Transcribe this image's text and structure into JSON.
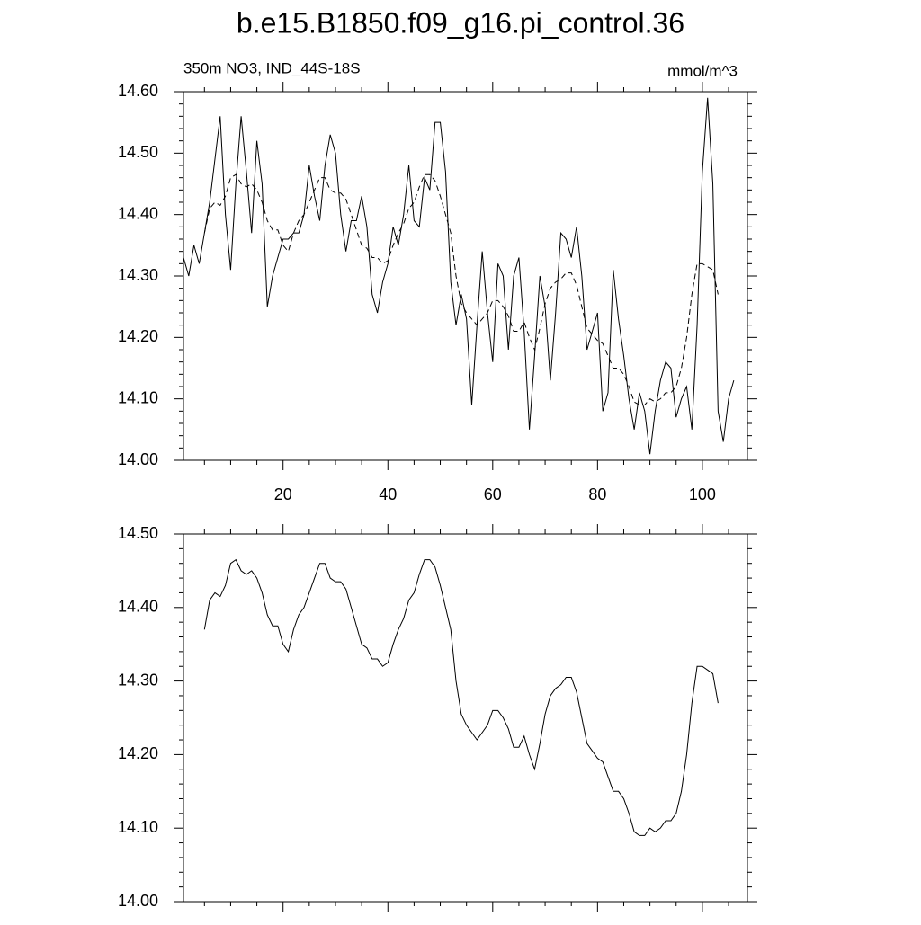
{
  "title": "b.e15.B1850.f09_g16.pi_control.36",
  "chart_data": [
    {
      "type": "line",
      "subtitle": "350m NO3, IND_44S-18S",
      "units": "mmol/m^3",
      "x": [
        1,
        2,
        3,
        4,
        5,
        6,
        7,
        8,
        9,
        10,
        11,
        12,
        13,
        14,
        15,
        16,
        17,
        18,
        19,
        20,
        21,
        22,
        23,
        24,
        25,
        26,
        27,
        28,
        29,
        30,
        31,
        32,
        33,
        34,
        35,
        36,
        37,
        38,
        39,
        40,
        41,
        42,
        43,
        44,
        45,
        46,
        47,
        48,
        49,
        50,
        51,
        52,
        53,
        54,
        55,
        56,
        57,
        58,
        59,
        60,
        61,
        62,
        63,
        64,
        65,
        66,
        67,
        68,
        69,
        70,
        71,
        72,
        73,
        74,
        75,
        76,
        77,
        78,
        79,
        80,
        81,
        82,
        83,
        84,
        85,
        86,
        87,
        88,
        89,
        90,
        91,
        92,
        93,
        94,
        95,
        96,
        97,
        98,
        99,
        100,
        101,
        102,
        103,
        104,
        105,
        106
      ],
      "series": [
        {
          "color": "#000000",
          "dashed": false,
          "values": [
            14.33,
            14.3,
            14.35,
            14.32,
            14.37,
            14.42,
            14.49,
            14.56,
            14.4,
            14.31,
            14.45,
            14.56,
            14.47,
            14.37,
            14.52,
            14.45,
            14.25,
            14.3,
            14.33,
            14.36,
            14.36,
            14.37,
            14.37,
            14.4,
            14.48,
            14.43,
            14.39,
            14.48,
            14.53,
            14.5,
            14.4,
            14.34,
            14.39,
            14.39,
            14.43,
            14.38,
            14.27,
            14.24,
            14.29,
            14.32,
            14.38,
            14.35,
            14.4,
            14.48,
            14.39,
            14.38,
            14.46,
            14.44,
            14.55,
            14.55,
            14.47,
            14.29,
            14.22,
            14.27,
            14.23,
            14.09,
            14.22,
            14.34,
            14.24,
            14.16,
            14.32,
            14.3,
            14.18,
            14.3,
            14.33,
            14.21,
            14.05,
            14.17,
            14.3,
            14.25,
            14.13,
            14.24,
            14.37,
            14.36,
            14.33,
            14.38,
            14.3,
            14.18,
            14.21,
            14.24,
            14.08,
            14.11,
            14.31,
            14.23,
            14.17,
            14.1,
            14.05,
            14.11,
            14.08,
            14.01,
            14.08,
            14.13,
            14.16,
            14.15,
            14.07,
            14.1,
            14.12,
            14.05,
            14.22,
            14.47,
            14.59,
            14.45,
            14.08,
            14.03,
            14.1,
            14.13
          ]
        },
        {
          "color": "#000000",
          "dashed": true,
          "values": [
            null,
            null,
            null,
            null,
            14.37,
            14.41,
            14.42,
            14.415,
            14.43,
            14.46,
            14.465,
            14.45,
            14.445,
            14.45,
            14.44,
            14.42,
            14.39,
            14.375,
            14.375,
            14.35,
            14.34,
            14.37,
            14.39,
            14.4,
            14.42,
            14.44,
            14.46,
            14.46,
            14.44,
            14.435,
            14.435,
            14.425,
            14.4,
            14.375,
            14.35,
            14.345,
            14.33,
            14.33,
            14.32,
            14.325,
            14.35,
            14.37,
            14.385,
            14.41,
            14.42,
            14.445,
            14.465,
            14.465,
            14.455,
            14.43,
            14.4,
            14.37,
            14.3,
            14.255,
            14.24,
            14.23,
            14.22,
            14.23,
            14.24,
            14.26,
            14.26,
            14.25,
            14.235,
            14.21,
            14.21,
            14.225,
            14.2,
            14.18,
            14.215,
            14.255,
            14.28,
            14.29,
            14.295,
            14.305,
            14.305,
            14.285,
            14.25,
            14.215,
            14.205,
            14.195,
            14.19,
            14.17,
            14.15,
            14.15,
            14.14,
            14.12,
            14.095,
            14.09,
            14.09,
            14.1,
            14.095,
            14.1,
            14.11,
            14.11,
            14.12,
            14.15,
            14.2,
            14.27,
            14.32,
            14.32,
            14.315,
            14.31,
            14.27,
            null,
            null,
            null
          ]
        }
      ],
      "xlim": [
        1,
        108.6
      ],
      "xticks": [
        20,
        40,
        60,
        80,
        100
      ],
      "xtick_labels": true,
      "ylim": [
        14.0,
        14.6
      ],
      "yticks": [
        {
          "value": 14.0,
          "label": "14.00"
        },
        {
          "value": 14.1,
          "label": "14.10"
        },
        {
          "value": 14.2,
          "label": "14.20"
        },
        {
          "value": 14.3,
          "label": "14.30"
        },
        {
          "value": 14.4,
          "label": "14.40"
        },
        {
          "value": 14.5,
          "label": "14.50"
        },
        {
          "value": 14.6,
          "label": "14.60"
        }
      ],
      "x_minor_divisions": 4,
      "y_minor_divisions": 5
    },
    {
      "type": "line",
      "x": [
        1,
        2,
        3,
        4,
        5,
        6,
        7,
        8,
        9,
        10,
        11,
        12,
        13,
        14,
        15,
        16,
        17,
        18,
        19,
        20,
        21,
        22,
        23,
        24,
        25,
        26,
        27,
        28,
        29,
        30,
        31,
        32,
        33,
        34,
        35,
        36,
        37,
        38,
        39,
        40,
        41,
        42,
        43,
        44,
        45,
        46,
        47,
        48,
        49,
        50,
        51,
        52,
        53,
        54,
        55,
        56,
        57,
        58,
        59,
        60,
        61,
        62,
        63,
        64,
        65,
        66,
        67,
        68,
        69,
        70,
        71,
        72,
        73,
        74,
        75,
        76,
        77,
        78,
        79,
        80,
        81,
        82,
        83,
        84,
        85,
        86,
        87,
        88,
        89,
        90,
        91,
        92,
        93,
        94,
        95,
        96,
        97,
        98,
        99,
        100,
        101,
        102,
        103,
        104,
        105,
        106
      ],
      "series": [
        {
          "color": "#000000",
          "dashed": false,
          "values": [
            null,
            null,
            null,
            null,
            14.37,
            14.41,
            14.42,
            14.415,
            14.43,
            14.46,
            14.465,
            14.45,
            14.445,
            14.45,
            14.44,
            14.42,
            14.39,
            14.375,
            14.375,
            14.35,
            14.34,
            14.37,
            14.39,
            14.4,
            14.42,
            14.44,
            14.46,
            14.46,
            14.44,
            14.435,
            14.435,
            14.425,
            14.4,
            14.375,
            14.35,
            14.345,
            14.33,
            14.33,
            14.32,
            14.325,
            14.35,
            14.37,
            14.385,
            14.41,
            14.42,
            14.445,
            14.465,
            14.465,
            14.455,
            14.43,
            14.4,
            14.37,
            14.3,
            14.255,
            14.24,
            14.23,
            14.22,
            14.23,
            14.24,
            14.26,
            14.26,
            14.25,
            14.235,
            14.21,
            14.21,
            14.225,
            14.2,
            14.18,
            14.215,
            14.255,
            14.28,
            14.29,
            14.295,
            14.305,
            14.305,
            14.285,
            14.25,
            14.215,
            14.205,
            14.195,
            14.19,
            14.17,
            14.15,
            14.15,
            14.14,
            14.12,
            14.095,
            14.09,
            14.09,
            14.1,
            14.095,
            14.1,
            14.11,
            14.11,
            14.12,
            14.15,
            14.2,
            14.27,
            14.32,
            14.32,
            14.315,
            14.31,
            14.27,
            null,
            null,
            null
          ]
        }
      ],
      "xlim": [
        1,
        108.6
      ],
      "xticks": [
        20,
        40,
        60,
        80,
        100
      ],
      "xtick_labels": false,
      "ylim": [
        14.0,
        14.5
      ],
      "yticks": [
        {
          "value": 14.0,
          "label": "14.00"
        },
        {
          "value": 14.1,
          "label": "14.10"
        },
        {
          "value": 14.2,
          "label": "14.20"
        },
        {
          "value": 14.3,
          "label": "14.30"
        },
        {
          "value": 14.4,
          "label": "14.40"
        },
        {
          "value": 14.5,
          "label": "14.50"
        }
      ],
      "x_minor_divisions": 4,
      "y_minor_divisions": 5
    }
  ]
}
